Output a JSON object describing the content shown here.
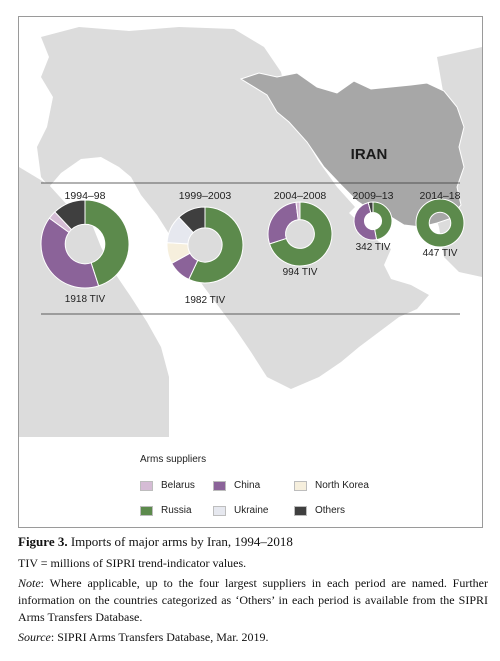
{
  "map": {
    "country_label": "IRAN"
  },
  "colors": {
    "Belarus": "#d5bcd5",
    "China": "#8b6399",
    "North Korea": "#f6efdd",
    "Russia": "#5c8a4c",
    "Ukraine": "#e6e8ef",
    "Others": "#3f3f3f"
  },
  "legend": {
    "title": "Arms suppliers",
    "items": [
      "Belarus",
      "China",
      "North Korea",
      "Russia",
      "Ukraine",
      "Others"
    ]
  },
  "chart_data": {
    "type": "pie",
    "title": "",
    "unit": "TIV",
    "periods": [
      {
        "period": "1994–98",
        "total": 1918,
        "total_label": "1918 TIV",
        "slices": [
          {
            "name": "Russia",
            "value": 0.45
          },
          {
            "name": "China",
            "value": 0.4
          },
          {
            "name": "Belarus",
            "value": 0.03
          },
          {
            "name": "Others",
            "value": 0.12
          }
        ]
      },
      {
        "period": "1999–2003",
        "total": 1982,
        "total_label": "1982 TIV",
        "slices": [
          {
            "name": "Russia",
            "value": 0.57
          },
          {
            "name": "China",
            "value": 0.1
          },
          {
            "name": "North Korea",
            "value": 0.09
          },
          {
            "name": "Ukraine",
            "value": 0.12
          },
          {
            "name": "Others",
            "value": 0.12
          }
        ]
      },
      {
        "period": "2004–2008",
        "total": 994,
        "total_label": "994 TIV",
        "slices": [
          {
            "name": "Russia",
            "value": 0.7
          },
          {
            "name": "China",
            "value": 0.28
          },
          {
            "name": "Belarus",
            "value": 0.02
          }
        ]
      },
      {
        "period": "2009–13",
        "total": 342,
        "total_label": "342 TIV",
        "slices": [
          {
            "name": "Russia",
            "value": 0.47
          },
          {
            "name": "China",
            "value": 0.49
          },
          {
            "name": "Others",
            "value": 0.04
          }
        ]
      },
      {
        "period": "2014–18",
        "total": 447,
        "total_label": "447 TIV",
        "slices": [
          {
            "name": "Russia",
            "value": 1.0
          }
        ]
      }
    ]
  },
  "caption": {
    "figure_label": "Figure 3.",
    "figure_title": "Imports of major arms by Iran, 1994–2018",
    "tiv_note": "TIV = millions of SIPRI trend-indicator values.",
    "note_label": "Note",
    "note_text": ": Where applicable, up to the four largest suppliers in each period are named. Further information on the countries categorized as ‘Others’ in each period is available from the SIPRI Arms Transfers Database.",
    "source_label": "Source",
    "source_text": ": SIPRI Arms Transfers Database, Mar. 2019."
  }
}
